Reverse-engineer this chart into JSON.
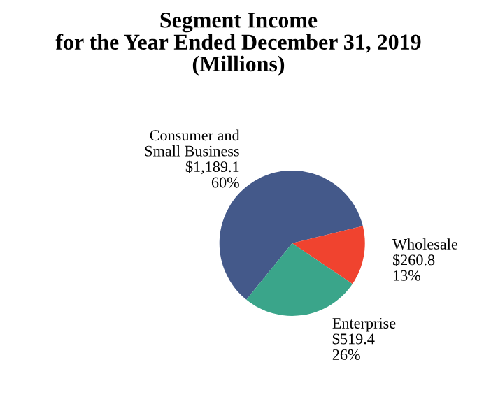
{
  "chart_data": {
    "type": "pie",
    "title": "Segment Income\nfor the Year Ended December 31, 2019\n(Millions)",
    "categories": [
      "Consumer and\nSmall Business",
      "Wholesale",
      "Enterprise"
    ],
    "values": [
      1189.1,
      260.8,
      519.4
    ],
    "value_labels": [
      "$1,189.1\n60%",
      "$260.8\n13%",
      "$519.4\n26%"
    ],
    "colors": [
      "#44598a",
      "#f0432f",
      "#3aa58a"
    ]
  }
}
